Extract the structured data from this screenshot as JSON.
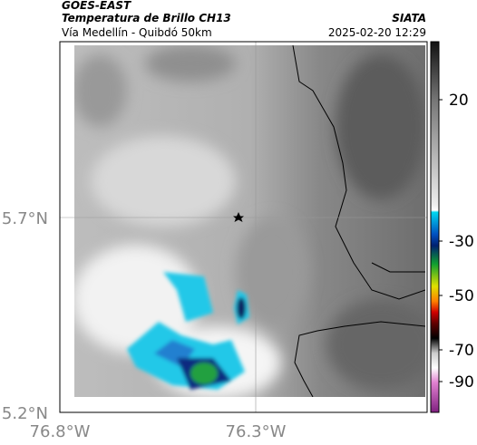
{
  "header": {
    "satellite": "GOES-EAST",
    "product": "Temperatura de Brillo CH13",
    "source": "SIATA",
    "region": "Vía Medellín - Quibdó 50km",
    "datetime": "2025-02-20 12:29"
  },
  "map": {
    "x_labels": [
      "76.8°W",
      "76.3°W"
    ],
    "y_labels": [
      "5.7°N",
      "5.2°N"
    ]
  },
  "colorbar": {
    "ticks": [
      20,
      -30,
      -50,
      -70,
      -90
    ]
  }
}
